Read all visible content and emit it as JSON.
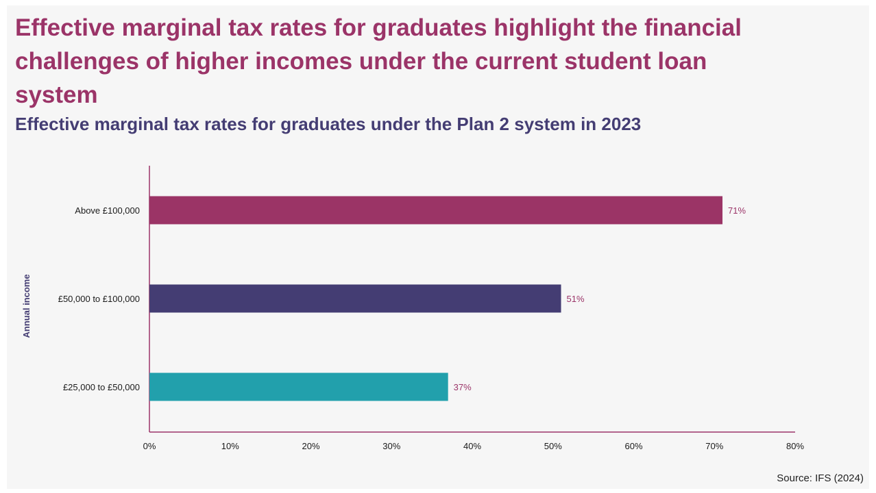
{
  "title": "Effective marginal tax rates for graduates highlight the financial challenges of higher incomes under the current student loan system",
  "subtitle": "Effective marginal tax rates for graduates under the Plan 2 system in 2023",
  "source": "Source: IFS (2024)",
  "colors": {
    "title": "#9b3468",
    "subtitle": "#443d73",
    "axis": "#9b3468",
    "label": "#9b3468"
  },
  "chart_data": {
    "type": "bar",
    "orientation": "horizontal",
    "categories": [
      "Above £100,000",
      "£50,000 to £100,000",
      "£25,000 to £50,000"
    ],
    "values": [
      71,
      51,
      37
    ],
    "value_labels": [
      "71%",
      "51%",
      "37%"
    ],
    "bar_colors": [
      "#9b3466",
      "#443d73",
      "#22a0ac"
    ],
    "xlabel": "",
    "ylabel": "Annual income",
    "xlim": [
      0,
      80
    ],
    "xticks": [
      0,
      10,
      20,
      30,
      40,
      50,
      60,
      70,
      80
    ],
    "xtick_labels": [
      "0%",
      "10%",
      "20%",
      "30%",
      "40%",
      "50%",
      "60%",
      "70%",
      "80%"
    ],
    "grid": false,
    "legend": "none"
  }
}
